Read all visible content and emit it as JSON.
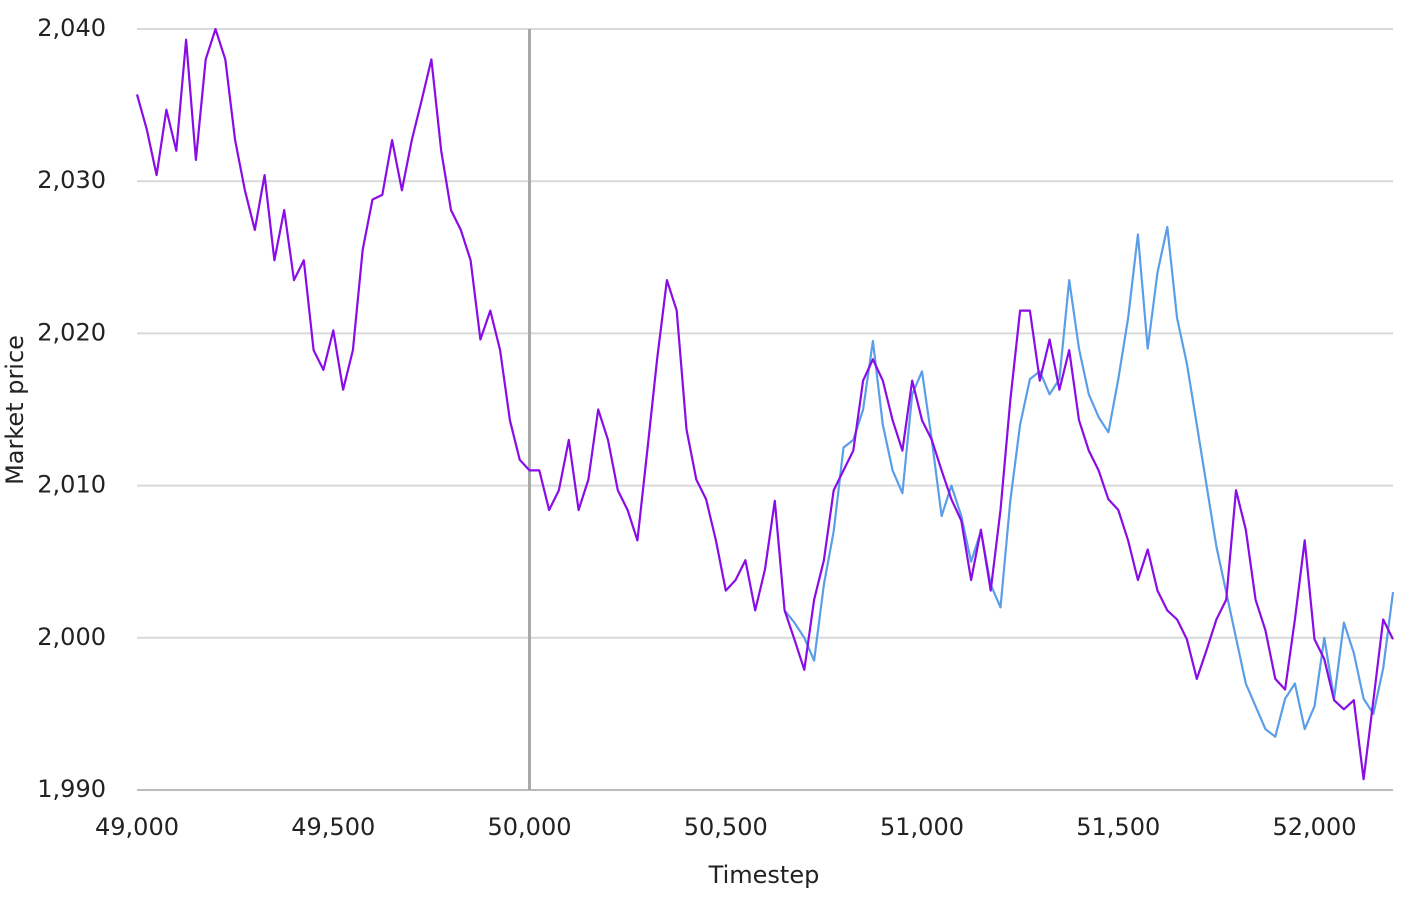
{
  "chart_data": {
    "type": "line",
    "x_label": "Timestep",
    "y_label": "Market price",
    "x": [
      49000,
      49025,
      49050,
      49075,
      49100,
      49125,
      49150,
      49175,
      49200,
      49225,
      49250,
      49275,
      49300,
      49325,
      49350,
      49375,
      49400,
      49425,
      49450,
      49475,
      49500,
      49525,
      49550,
      49575,
      49600,
      49625,
      49650,
      49675,
      49700,
      49725,
      49750,
      49775,
      49800,
      49825,
      49850,
      49875,
      49900,
      49925,
      49950,
      49975,
      50000,
      50025,
      50050,
      50075,
      50100,
      50125,
      50150,
      50175,
      50200,
      50225,
      50250,
      50275,
      50300,
      50325,
      50350,
      50375,
      50400,
      50425,
      50450,
      50475,
      50500,
      50525,
      50550,
      50575,
      50600,
      50625,
      50650,
      50675,
      50700,
      50725,
      50750,
      50775,
      50800,
      50825,
      50850,
      50875,
      50900,
      50925,
      50950,
      50975,
      51000,
      51025,
      51050,
      51075,
      51100,
      51125,
      51150,
      51175,
      51200,
      51225,
      51250,
      51275,
      51300,
      51325,
      51350,
      51375,
      51400,
      51425,
      51450,
      51475,
      51500,
      51525,
      51550,
      51575,
      51600,
      51625,
      51650,
      51675,
      51700,
      51725,
      51750,
      51775,
      51800,
      51825,
      51850,
      51875,
      51900,
      51925,
      51950,
      51975,
      52000,
      52025,
      52050,
      52075,
      52100,
      52125,
      52150,
      52175,
      52200
    ],
    "series": [
      {
        "color": "#5b9ee8",
        "values": [
          null,
          null,
          null,
          null,
          null,
          null,
          null,
          null,
          null,
          null,
          null,
          null,
          null,
          null,
          null,
          null,
          null,
          null,
          null,
          null,
          null,
          null,
          null,
          null,
          null,
          null,
          null,
          null,
          null,
          null,
          null,
          null,
          null,
          null,
          null,
          null,
          null,
          null,
          null,
          null,
          null,
          null,
          null,
          null,
          null,
          null,
          null,
          null,
          null,
          null,
          null,
          null,
          null,
          null,
          null,
          null,
          null,
          null,
          null,
          null,
          null,
          null,
          null,
          null,
          null,
          null,
          2001.8,
          2001,
          2000,
          1998.5,
          2003.5,
          2007,
          2012.5,
          2013,
          2015,
          2019.5,
          2014,
          2011,
          2009.5,
          2016,
          2017.5,
          2013,
          2008,
          2010,
          2008,
          2005,
          2007,
          2003.5,
          2002,
          2009,
          2014,
          2017,
          2017.5,
          2016,
          2017,
          2023.5,
          2019,
          2016,
          2014.5,
          2013.5,
          2017,
          2021,
          2026.5,
          2019,
          2024,
          2027,
          2021,
          2018,
          2014,
          2010,
          2006,
          2003,
          2000,
          1997,
          1995.5,
          1994,
          1993.5,
          1996,
          1997,
          1994,
          1995.5,
          2000,
          1996,
          2001,
          1999,
          1996,
          1995,
          1998,
          2003
        ]
      },
      {
        "color": "#8a0ce6",
        "values": [
          2035.7,
          2033.4,
          2030.4,
          2034.7,
          2032,
          2039.3,
          2031.4,
          2038,
          2040,
          2038,
          2032.7,
          2029.4,
          2026.8,
          2030.4,
          2024.8,
          2028.1,
          2023.5,
          2024.8,
          2018.9,
          2017.6,
          2020.2,
          2016.3,
          2018.9,
          2025.5,
          2028.8,
          2029.1,
          2032.7,
          2029.4,
          2032.7,
          2035.3,
          2038,
          2032,
          2028.1,
          2026.8,
          2024.8,
          2019.6,
          2021.5,
          2018.9,
          2014.3,
          2011.7,
          2011,
          2011,
          2008.4,
          2009.7,
          2013,
          2008.4,
          2010.4,
          2015,
          2013,
          2009.7,
          2008.4,
          2006.4,
          2012.3,
          2018.3,
          2023.5,
          2021.5,
          2013.7,
          2010.4,
          2009.1,
          2006.4,
          2003.1,
          2003.8,
          2005.1,
          2001.8,
          2004.5,
          2009,
          2001.8,
          1999.9,
          1997.9,
          2002.5,
          2005.1,
          2009.7,
          2011,
          2012.3,
          2016.9,
          2018.3,
          2016.9,
          2014.3,
          2012.3,
          2016.9,
          2014.3,
          2013,
          2011,
          2009.1,
          2007.7,
          2003.8,
          2007.1,
          2003.1,
          2008.4,
          2015.6,
          2021.5,
          2021.5,
          2016.9,
          2019.6,
          2016.3,
          2018.9,
          2014.3,
          2012.3,
          2011,
          2009.1,
          2008.4,
          2006.4,
          2003.8,
          2005.8,
          2003.1,
          2001.8,
          2001.2,
          1999.9,
          1997.3,
          1999.2,
          2001.2,
          2002.5,
          2009.7,
          2007.1,
          2002.5,
          2000.5,
          1997.3,
          1996.6,
          2001.2,
          2006.4,
          1999.9,
          1998.6,
          1995.9,
          1995.3,
          1995.9,
          1990.7,
          1995.9,
          2001.2,
          1999.9
        ]
      }
    ],
    "vline": 50000,
    "vline_color": "#aaaaaa",
    "xlim": [
      49000,
      52200
    ],
    "xticks": [
      {
        "value": 49000,
        "label": "49,000"
      },
      {
        "value": 49500,
        "label": "49,500"
      },
      {
        "value": 50000,
        "label": "50,000"
      },
      {
        "value": 50500,
        "label": "50,500"
      },
      {
        "value": 51000,
        "label": "51,000"
      },
      {
        "value": 51500,
        "label": "51,500"
      },
      {
        "value": 52000,
        "label": "52,000"
      }
    ],
    "ylim": [
      1990,
      2040
    ],
    "yticks": [
      {
        "value": 1990,
        "label": "1,990"
      },
      {
        "value": 2000,
        "label": "2,000"
      },
      {
        "value": 2010,
        "label": "2,010"
      },
      {
        "value": 2020,
        "label": "2,020"
      },
      {
        "value": 2030,
        "label": "2,030"
      },
      {
        "value": 2040,
        "label": "2,040"
      }
    ],
    "grid": true
  }
}
